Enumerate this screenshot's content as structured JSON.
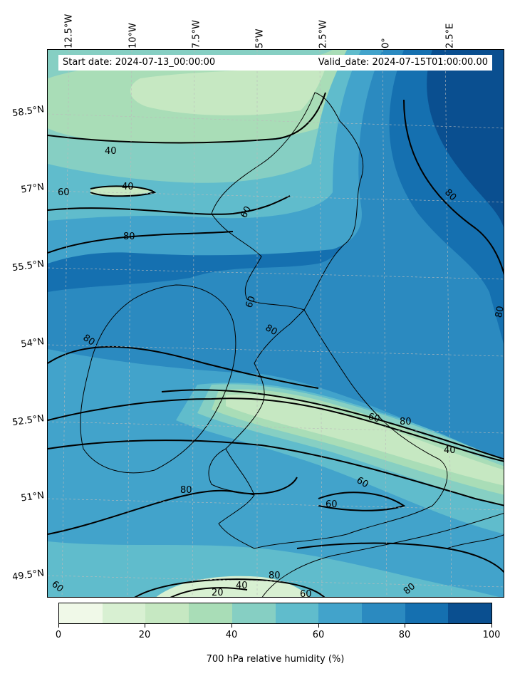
{
  "header": {
    "start_date": "Start date: 2024-07-13_00:00:00",
    "valid_date": "Valid_date: 2024-07-15T01:00:00.00"
  },
  "longitude_labels": [
    "12.5°W",
    "10°W",
    "7.5°W",
    "5°W",
    "2.5°W",
    "0°",
    "2.5°E"
  ],
  "latitude_labels": [
    "58.5°N",
    "57°N",
    "55.5°N",
    "54°N",
    "52.5°N",
    "51°N",
    "49.5°N"
  ],
  "contour_labels": [
    "40",
    "40",
    "60",
    "80",
    "60",
    "80",
    "80",
    "80",
    "60",
    "80",
    "60",
    "40",
    "60",
    "80",
    "60",
    "80",
    "40",
    "60",
    "20",
    "80",
    "80",
    "60"
  ],
  "colorbar": {
    "title": "700 hPa relative humidity (%)",
    "tick_labels": [
      "0",
      "20",
      "40",
      "60",
      "80",
      "100"
    ],
    "colors": [
      "#f0f9e8",
      "#d8f0d2",
      "#c6e8c2",
      "#a9ddb7",
      "#86cfc3",
      "#60bccc",
      "#42a3cb",
      "#2b8ac0",
      "#1570b0",
      "#0a4f90"
    ]
  },
  "map": {
    "field": "700 hPa relative humidity",
    "region": "British Isles and Ireland",
    "contour_levels": [
      20,
      40,
      60,
      80
    ]
  }
}
